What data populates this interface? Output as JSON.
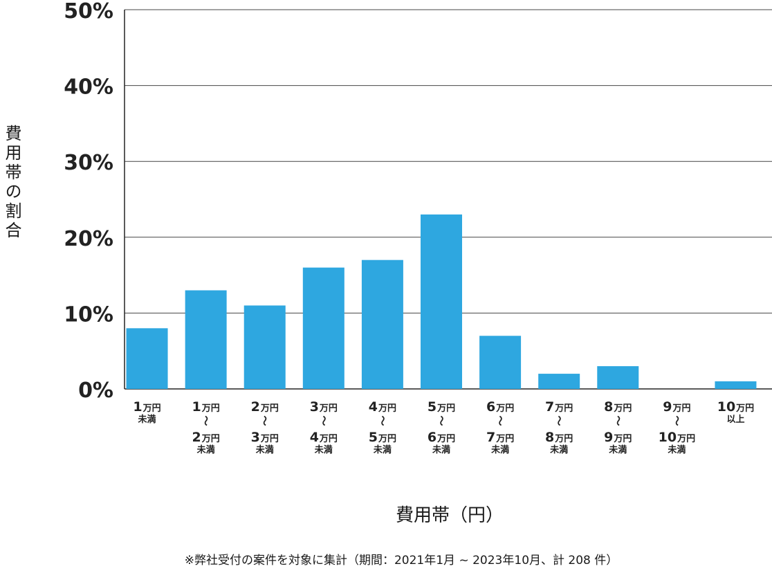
{
  "chart_data": {
    "type": "bar",
    "categories": [
      {
        "lines": [
          [
            "1",
            "万円"
          ],
          [
            "",
            "未満"
          ]
        ]
      },
      {
        "lines": [
          [
            "1",
            "万円"
          ],
          [
            "〜",
            ""
          ],
          [
            "2",
            "万円"
          ],
          [
            "",
            "未満"
          ]
        ]
      },
      {
        "lines": [
          [
            "2",
            "万円"
          ],
          [
            "〜",
            ""
          ],
          [
            "3",
            "万円"
          ],
          [
            "",
            "未満"
          ]
        ]
      },
      {
        "lines": [
          [
            "3",
            "万円"
          ],
          [
            "〜",
            ""
          ],
          [
            "4",
            "万円"
          ],
          [
            "",
            "未満"
          ]
        ]
      },
      {
        "lines": [
          [
            "4",
            "万円"
          ],
          [
            "〜",
            ""
          ],
          [
            "5",
            "万円"
          ],
          [
            "",
            "未満"
          ]
        ]
      },
      {
        "lines": [
          [
            "5",
            "万円"
          ],
          [
            "〜",
            ""
          ],
          [
            "6",
            "万円"
          ],
          [
            "",
            "未満"
          ]
        ]
      },
      {
        "lines": [
          [
            "6",
            "万円"
          ],
          [
            "〜",
            ""
          ],
          [
            "7",
            "万円"
          ],
          [
            "",
            "未満"
          ]
        ]
      },
      {
        "lines": [
          [
            "7",
            "万円"
          ],
          [
            "〜",
            ""
          ],
          [
            "8",
            "万円"
          ],
          [
            "",
            "未満"
          ]
        ]
      },
      {
        "lines": [
          [
            "8",
            "万円"
          ],
          [
            "〜",
            ""
          ],
          [
            "9",
            "万円"
          ],
          [
            "",
            "未満"
          ]
        ]
      },
      {
        "lines": [
          [
            "9",
            "万円"
          ],
          [
            "〜",
            ""
          ],
          [
            "10",
            "万円"
          ],
          [
            "",
            "未満"
          ]
        ]
      },
      {
        "lines": [
          [
            "10",
            "万円"
          ],
          [
            "",
            "以上"
          ]
        ]
      }
    ],
    "values": [
      8,
      13,
      11,
      16,
      17,
      23,
      7,
      2,
      3,
      0,
      1
    ],
    "ylim": [
      0,
      50
    ],
    "yticks": [
      0,
      10,
      20,
      30,
      40,
      50
    ],
    "ytick_suffix": "%",
    "ylabel": "費用帯の割合",
    "xlabel": "費用帯（円）",
    "grid": true,
    "bar_color": "#2ea7e0"
  },
  "footnote": "※弊社受付の案件を対象に集計（期間：2021年1月 ~ 2023年10月、計 208 件）"
}
